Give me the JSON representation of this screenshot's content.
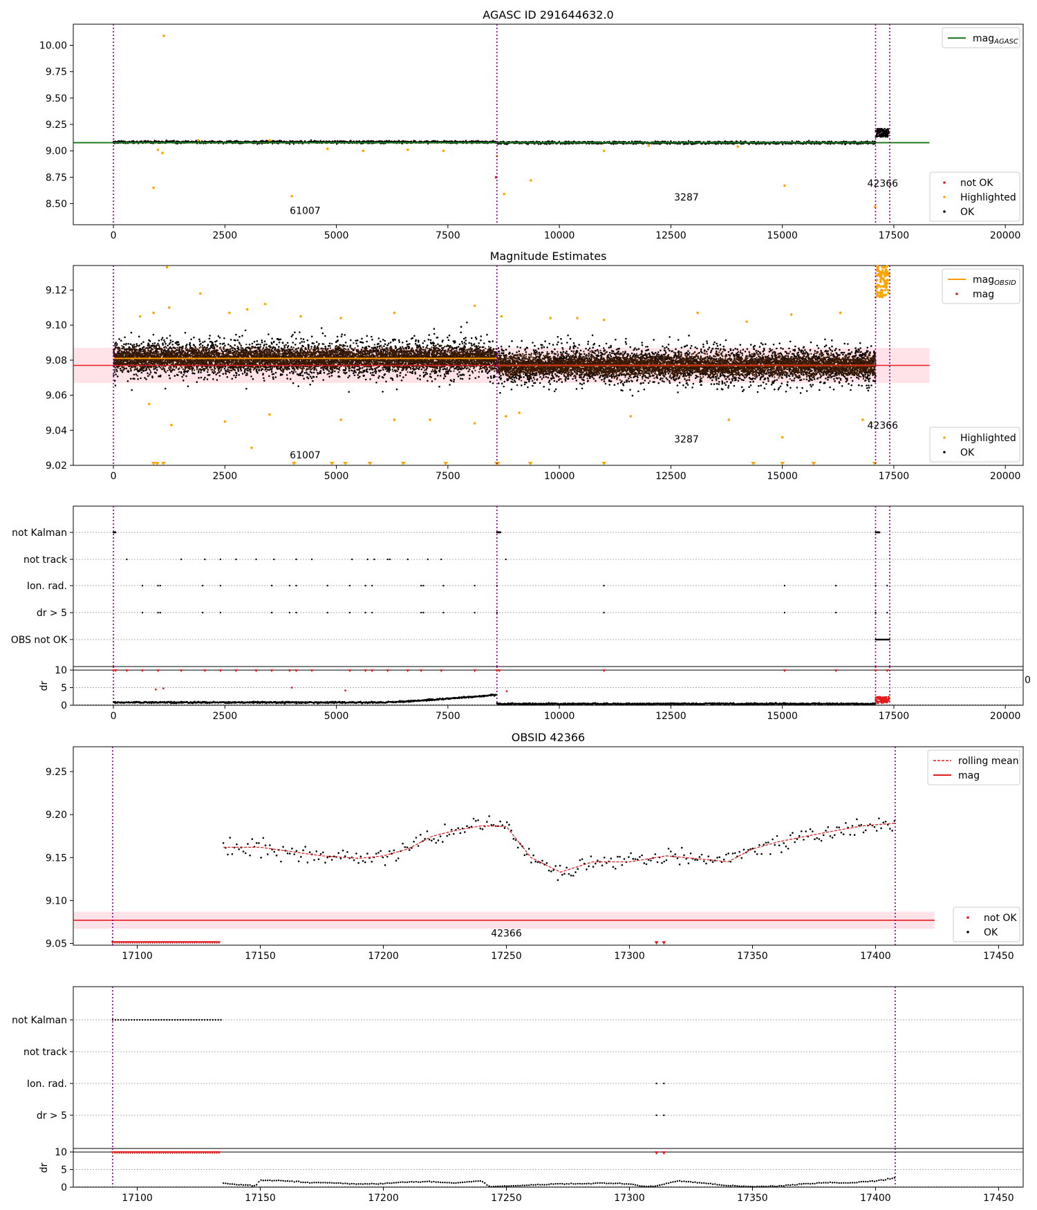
{
  "figure": {
    "panels": [
      {
        "id": "p1",
        "title": "AGASC ID 291644632.0"
      },
      {
        "id": "p2",
        "title": "Magnitude Estimates"
      },
      {
        "id": "p3",
        "title": ""
      },
      {
        "id": "p4",
        "title": "OBSID 42366"
      },
      {
        "id": "p5",
        "title": ""
      }
    ]
  },
  "chart_data": [
    {
      "type": "scatter",
      "title": "AGASC ID 291644632.0",
      "xlim": [
        -900,
        20400
      ],
      "ylim": [
        8.3,
        10.2
      ],
      "xticks": [
        0,
        2500,
        5000,
        7500,
        10000,
        12500,
        15000,
        17500,
        20000
      ],
      "yticks": [
        8.5,
        8.75,
        9.0,
        9.25,
        9.5,
        9.75,
        10.0
      ],
      "ytick_labels": [
        "8.50",
        "8.75",
        "9.00",
        "9.25",
        "9.50",
        "9.75",
        "10.00"
      ],
      "vlines_x": [
        0,
        8600,
        17090,
        17408
      ],
      "ref_line": {
        "name": "mag_AGASC",
        "y": 9.077,
        "color": "#1f7a1f",
        "x_range": [
          -900,
          18300
        ]
      },
      "ok_band": {
        "center": 9.077,
        "spread": 0.012
      },
      "ok_segments": [
        [
          0,
          8600,
          9.082
        ],
        [
          8600,
          17090,
          9.077
        ]
      ],
      "late_cluster": {
        "x": [
          17090,
          17408
        ],
        "y": [
          9.13,
          9.21
        ]
      },
      "highlighted_points": [
        [
          1130,
          10.09
        ],
        [
          900,
          8.65
        ],
        [
          4000,
          8.57
        ],
        [
          9360,
          8.72
        ],
        [
          15050,
          8.67
        ],
        [
          8760,
          8.59
        ],
        [
          17080,
          8.47
        ],
        [
          1000,
          9.01
        ],
        [
          1100,
          8.98
        ],
        [
          4800,
          9.02
        ],
        [
          5600,
          9.0
        ],
        [
          7400,
          9.0
        ],
        [
          8600,
          8.95
        ],
        [
          11000,
          9.0
        ],
        [
          12000,
          9.05
        ],
        [
          14000,
          9.04
        ],
        [
          1900,
          9.1
        ],
        [
          3500,
          9.1
        ],
        [
          6600,
          9.01
        ]
      ],
      "not_ok_points": [
        [
          8580,
          8.75
        ]
      ],
      "obsid_labels": [
        {
          "text": "61007",
          "x": 4300,
          "y": 8.4
        },
        {
          "text": "3287",
          "x": 12850,
          "y": 8.53
        },
        {
          "text": "42366",
          "x": 17250,
          "y": 8.66
        }
      ],
      "legend": {
        "position": "top-right",
        "entries": [
          {
            "label": "mag",
            "sub": "AGASC",
            "color": "#1f7a1f"
          }
        ]
      },
      "legend2": {
        "position": "bottom-right",
        "entries": [
          {
            "label": "not OK",
            "color": "#e41a1c"
          },
          {
            "label": "Highlighted",
            "color": "#ffa500"
          },
          {
            "label": "OK",
            "color": "#000000"
          }
        ]
      }
    },
    {
      "type": "scatter",
      "title": "Magnitude Estimates",
      "xlim": [
        -900,
        20400
      ],
      "ylim": [
        9.02,
        9.134
      ],
      "xticks": [
        0,
        2500,
        5000,
        7500,
        10000,
        12500,
        15000,
        17500,
        20000
      ],
      "yticks": [
        9.02,
        9.04,
        9.06,
        9.08,
        9.1,
        9.12
      ],
      "ytick_labels": [
        "9.02",
        "9.04",
        "9.06",
        "9.08",
        "9.10",
        "9.12"
      ],
      "vlines_x": [
        0,
        8600,
        17090,
        17408
      ],
      "mag_line": {
        "name": "mag",
        "y": 9.077,
        "band": [
          9.067,
          9.087
        ],
        "x_range": [
          -900,
          18300
        ]
      },
      "obsid_mag_segments": [
        [
          0,
          8600,
          9.081
        ],
        [
          8600,
          17090,
          9.077
        ]
      ],
      "ok_scatter": {
        "center_1": 9.081,
        "center_2": 9.077,
        "inner_spread": 0.006,
        "outer_spread": 0.022
      },
      "highlighted_top": [
        [
          600,
          9.105
        ],
        [
          900,
          9.107
        ],
        [
          1250,
          9.11
        ],
        [
          1950,
          9.118
        ],
        [
          2600,
          9.107
        ],
        [
          3000,
          9.109
        ],
        [
          3400,
          9.112
        ],
        [
          4200,
          9.105
        ],
        [
          5100,
          9.104
        ],
        [
          6300,
          9.107
        ],
        [
          8100,
          9.111
        ],
        [
          8700,
          9.105
        ],
        [
          9800,
          9.104
        ],
        [
          10400,
          9.104
        ],
        [
          11000,
          9.103
        ],
        [
          13100,
          9.107
        ],
        [
          14200,
          9.102
        ],
        [
          15200,
          9.106
        ],
        [
          16300,
          9.107
        ],
        [
          1200,
          9.133
        ]
      ],
      "highlighted_bottom": [
        [
          800,
          9.055
        ],
        [
          1300,
          9.043
        ],
        [
          2500,
          9.045
        ],
        [
          3100,
          9.03
        ],
        [
          3500,
          9.049
        ],
        [
          5100,
          9.046
        ],
        [
          6300,
          9.046
        ],
        [
          7100,
          9.046
        ],
        [
          8100,
          9.044
        ],
        [
          8800,
          9.048
        ],
        [
          9100,
          9.05
        ],
        [
          11600,
          9.048
        ],
        [
          13800,
          9.046
        ],
        [
          15000,
          9.036
        ],
        [
          16800,
          9.046
        ],
        [
          17000,
          9.044
        ]
      ],
      "highlighted_floor_x": [
        900,
        980,
        1120,
        4050,
        4900,
        5200,
        5750,
        6500,
        7450,
        8590,
        8620,
        9350,
        11000,
        14350,
        15000,
        15700,
        17070
      ],
      "late_highlighted": {
        "x": [
          17090,
          17408
        ],
        "y": [
          9.115,
          9.134
        ]
      },
      "obsid_labels": [
        {
          "text": "61007",
          "x": 4300,
          "y": 9.024
        },
        {
          "text": "3287",
          "x": 12850,
          "y": 9.033
        },
        {
          "text": "42366",
          "x": 17250,
          "y": 9.041
        }
      ],
      "legend": {
        "position": "top-right",
        "entries": [
          {
            "label": "mag",
            "sub": "OBSID",
            "color": "#ff9900"
          },
          {
            "label": "mag",
            "color": "#e41a1c"
          }
        ]
      },
      "legend2": {
        "position": "bottom-right",
        "entries": [
          {
            "label": "Highlighted",
            "color": "#ffa500"
          },
          {
            "label": "OK",
            "color": "#000000"
          }
        ]
      }
    },
    {
      "type": "scatter",
      "title": "",
      "xlim": [
        -900,
        20400
      ],
      "xticks": [
        0,
        2500,
        5000,
        7500,
        10000,
        12500,
        15000,
        17500,
        20000
      ],
      "categories": [
        "not Kalman",
        "not track",
        "Ion. rad.",
        "dr > 5",
        "OBS not OK"
      ],
      "vlines_x": [
        0,
        8600,
        17090,
        17408
      ],
      "flags": {
        "not Kalman": [
          [
            0,
            50
          ],
          [
            8600,
            8680
          ],
          [
            17090,
            17180
          ]
        ],
        "not track": [
          300,
          1520,
          2050,
          2400,
          2750,
          3200,
          3600,
          4100,
          4450,
          5350,
          5700,
          5850,
          6150,
          6200,
          6600,
          7050,
          7350,
          8800
        ],
        "Ion. rad.": [
          650,
          1000,
          1050,
          2000,
          2400,
          3550,
          3950,
          4100,
          4800,
          5300,
          5650,
          5800,
          6900,
          6950,
          7400,
          8100,
          8600,
          11000,
          15050,
          16200,
          17090,
          17350
        ],
        "dr > 5": [
          650,
          1000,
          1050,
          2000,
          2400,
          3550,
          3950,
          4100,
          4800,
          5300,
          5650,
          5800,
          6900,
          6950,
          7400,
          8100,
          8600,
          11000,
          15050,
          16200,
          17090,
          17350
        ],
        "OBS not OK": [
          [
            17090,
            17408
          ]
        ]
      },
      "dr_plot": {
        "ylabel": "dr",
        "yticks": [
          0,
          5,
          10
        ],
        "ylim": [
          0,
          11
        ],
        "cap": 10,
        "segments": [
          [
            0,
            8600,
            0.8,
            3.0
          ],
          [
            8600,
            17090,
            0.4,
            0.5
          ]
        ],
        "late_red": [
          17090,
          17408
        ],
        "red_mid_points": [
          [
            950,
            4.5
          ],
          [
            1120,
            4.8
          ],
          [
            4000,
            5.0
          ],
          [
            5200,
            4.2
          ],
          [
            8820,
            4.0
          ]
        ],
        "cap_red_x": [
          0,
          50,
          300,
          650,
          1000,
          1520,
          2050,
          2400,
          2750,
          3200,
          3550,
          3950,
          4100,
          4450,
          5300,
          5650,
          5800,
          6150,
          6600,
          6900,
          7350,
          8100,
          8600,
          8650,
          11000,
          15050,
          16200,
          17090,
          17350
        ]
      },
      "stray_tick_label": "0"
    },
    {
      "type": "line",
      "title": "OBSID 42366",
      "xlim": [
        17074,
        17460
      ],
      "ylim": [
        9.048,
        9.279
      ],
      "xticks": [
        17100,
        17150,
        17200,
        17250,
        17300,
        17350,
        17400,
        17450
      ],
      "yticks": [
        9.05,
        9.1,
        9.15,
        9.2,
        9.25
      ],
      "ytick_labels": [
        "9.05",
        "9.10",
        "9.15",
        "9.20",
        "9.25"
      ],
      "vlines_x": [
        17090,
        17408
      ],
      "mag_line": {
        "y": 9.077,
        "band": [
          9.067,
          9.087
        ],
        "x_range": [
          17074,
          17424
        ]
      },
      "rolling_mean": {
        "x": [
          17135,
          17150,
          17160,
          17175,
          17190,
          17200,
          17210,
          17220,
          17230,
          17240,
          17250,
          17260,
          17272,
          17285,
          17300,
          17315,
          17330,
          17340,
          17350,
          17360,
          17372,
          17385,
          17395,
          17408
        ],
        "y": [
          9.162,
          9.162,
          9.158,
          9.152,
          9.149,
          9.152,
          9.16,
          9.175,
          9.182,
          9.187,
          9.186,
          9.15,
          9.133,
          9.145,
          9.145,
          9.152,
          9.148,
          9.145,
          9.16,
          9.168,
          9.175,
          9.182,
          9.187,
          9.19
        ]
      },
      "noise_amplitude": 0.018,
      "not_ok_floor": {
        "x_start": 17090,
        "x_end": 17134,
        "extra_x": [
          17311,
          17314
        ],
        "y": 9.051
      },
      "obsid_labels": [
        {
          "text": "42366",
          "x": 17250,
          "y": 9.058
        }
      ],
      "legend": {
        "position": "top-right",
        "entries": [
          {
            "label": "rolling mean",
            "style": "dashed",
            "color": "#e41a1c"
          },
          {
            "label": "mag",
            "style": "solid",
            "color": "#e41a1c"
          }
        ]
      },
      "legend2": {
        "position": "bottom-right",
        "entries": [
          {
            "label": "not OK",
            "color": "#e41a1c"
          },
          {
            "label": "OK",
            "color": "#000000"
          }
        ]
      }
    },
    {
      "type": "scatter",
      "title": "",
      "xlim": [
        17074,
        17460
      ],
      "xticks": [
        17100,
        17150,
        17200,
        17250,
        17300,
        17350,
        17400,
        17450
      ],
      "categories": [
        "not Kalman",
        "not track",
        "Ion. rad.",
        "dr > 5"
      ],
      "vlines_x": [
        17090,
        17408
      ],
      "flags": {
        "not Kalman": [
          [
            17090,
            17134
          ]
        ],
        "not track": [],
        "Ion. rad.": [
          17311,
          17314
        ],
        "dr > 5": [
          17311,
          17314
        ]
      },
      "dr_plot": {
        "ylabel": "dr",
        "yticks": [
          0,
          5,
          10
        ],
        "ylim": [
          0,
          11
        ],
        "cap": 10,
        "cap_red_range": [
          17090,
          17134
        ],
        "cap_red_extra": [
          17311,
          17314
        ],
        "dr_profile": {
          "x": [
            17135,
            17140,
            17145,
            17148,
            17150,
            17160,
            17170,
            17180,
            17190,
            17200,
            17210,
            17220,
            17230,
            17240,
            17243,
            17250,
            17260,
            17270,
            17280,
            17290,
            17300,
            17305,
            17310,
            17320,
            17330,
            17340,
            17350,
            17360,
            17370,
            17380,
            17390,
            17400,
            17408
          ],
          "y": [
            1.2,
            0.8,
            0.5,
            0.4,
            2.0,
            1.8,
            1.3,
            1.2,
            0.9,
            1.0,
            1.5,
            1.6,
            1.2,
            1.8,
            0.2,
            0.3,
            0.6,
            0.9,
            1.0,
            1.1,
            1.0,
            0.3,
            0.2,
            1.8,
            1.2,
            0.4,
            0.2,
            0.3,
            0.9,
            1.3,
            1.2,
            1.8,
            2.6
          ]
        }
      }
    }
  ]
}
